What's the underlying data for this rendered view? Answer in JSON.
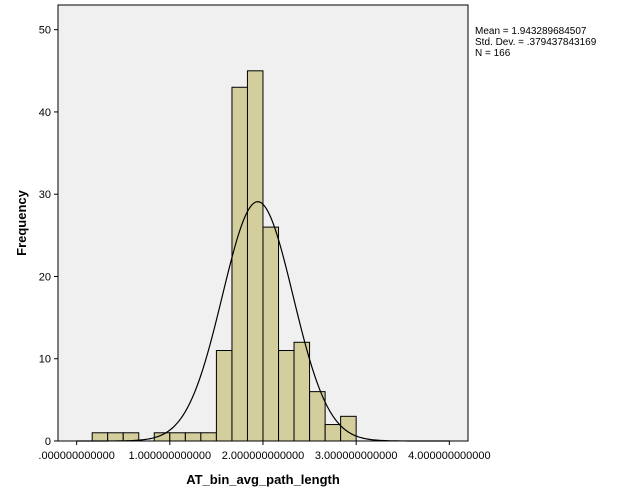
{
  "chart_data": {
    "type": "histogram",
    "xlabel": "AT_bin_avg_path_length",
    "ylabel": "Frequency",
    "xlim": [
      -0.2,
      4.2
    ],
    "ylim": [
      0,
      53
    ],
    "x_ticks": [
      0,
      1,
      2,
      3,
      4
    ],
    "x_tick_labels": [
      ".000000000000",
      "1.000000000000",
      "2.000000000000",
      "3.000000000000",
      "4.000000000000"
    ],
    "y_ticks": [
      0,
      10,
      20,
      30,
      40,
      50
    ],
    "y_tick_labels": [
      "0",
      "10",
      "20",
      "30",
      "40",
      "50"
    ],
    "bin_width": 0.1667,
    "bins": [
      {
        "start": 0.167,
        "count": 1
      },
      {
        "start": 0.333,
        "count": 1
      },
      {
        "start": 0.5,
        "count": 1
      },
      {
        "start": 0.833,
        "count": 1
      },
      {
        "start": 1.0,
        "count": 1
      },
      {
        "start": 1.167,
        "count": 1
      },
      {
        "start": 1.333,
        "count": 1
      },
      {
        "start": 1.5,
        "count": 11
      },
      {
        "start": 1.667,
        "count": 43
      },
      {
        "start": 1.833,
        "count": 45
      },
      {
        "start": 2.0,
        "count": 26
      },
      {
        "start": 2.167,
        "count": 11
      },
      {
        "start": 2.333,
        "count": 12
      },
      {
        "start": 2.5,
        "count": 6
      },
      {
        "start": 2.667,
        "count": 2
      },
      {
        "start": 2.833,
        "count": 3
      }
    ],
    "normal_curve": {
      "mean": 1.943289684507,
      "std": 0.379437843169,
      "n": 166
    },
    "grid": false,
    "legend": "none",
    "stats_lines": [
      "Mean = 1.943289684507",
      "Std. Dev. = .379437843169",
      "N = 166"
    ],
    "colors": {
      "bar_fill": "#d3ce9c",
      "bar_stroke": "#000000",
      "plot_bg": "#f0f0f0",
      "curve": "#000000"
    }
  }
}
